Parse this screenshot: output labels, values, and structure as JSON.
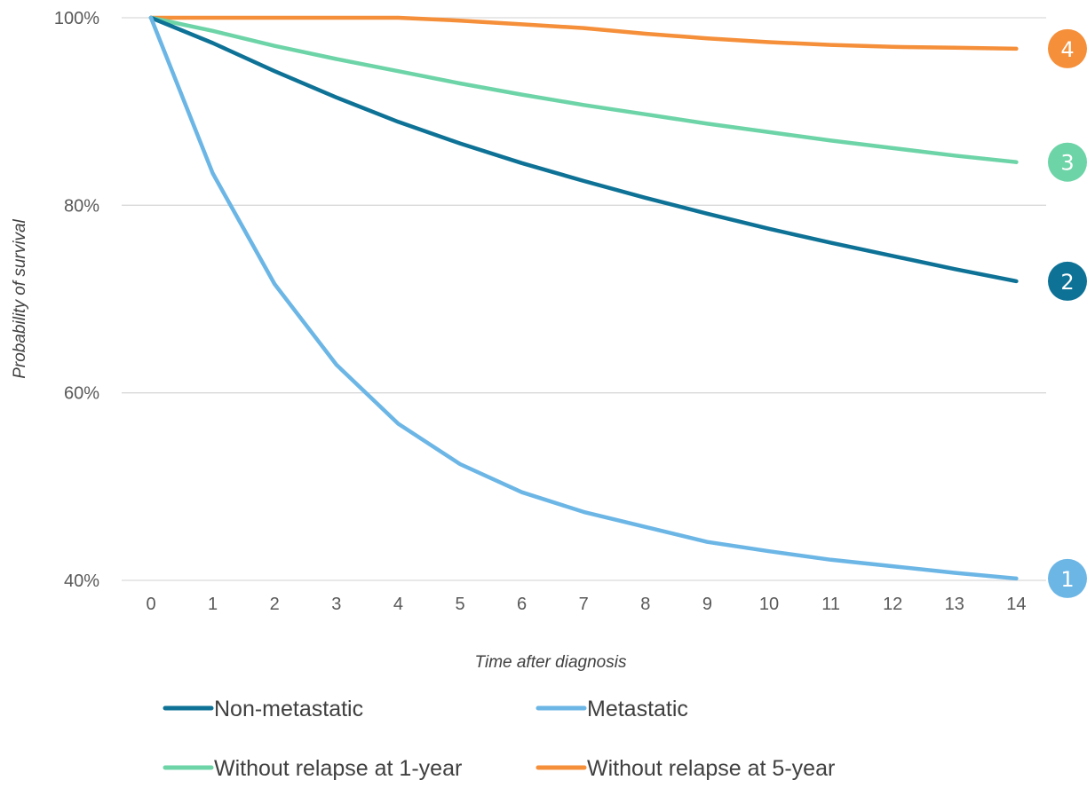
{
  "chart_data": {
    "type": "line",
    "title": "",
    "xlabel": "Time after diagnosis",
    "ylabel": "Probability of survival",
    "x": [
      0,
      1,
      2,
      3,
      4,
      5,
      6,
      7,
      8,
      9,
      10,
      11,
      12,
      13,
      14
    ],
    "x_tick_labels": [
      "0",
      "1",
      "2",
      "3",
      "4",
      "5",
      "6",
      "7",
      "8",
      "9",
      "10",
      "11",
      "12",
      "13",
      "14"
    ],
    "y_ticks": [
      40,
      60,
      80,
      100
    ],
    "y_tick_labels": [
      "40%",
      "60%",
      "80%",
      "100%"
    ],
    "ylim": [
      40,
      100
    ],
    "grid": "horizontal",
    "legend_position": "bottom",
    "series": [
      {
        "name": "Non-metastatic",
        "color": "#0e7296",
        "badge": "2",
        "values": [
          100,
          97.3,
          94.3,
          91.5,
          88.9,
          86.6,
          84.5,
          82.6,
          80.8,
          79.1,
          77.5,
          76.0,
          74.6,
          73.2,
          71.9
        ]
      },
      {
        "name": "Metastatic",
        "color": "#6cb6e6",
        "badge": "1",
        "values": [
          100,
          83.4,
          71.6,
          63.0,
          56.7,
          52.4,
          49.4,
          47.3,
          45.7,
          44.1,
          43.1,
          42.2,
          41.5,
          40.8,
          40.2
        ]
      },
      {
        "name": "Without relapse at 1-year",
        "color": "#6dd4a8",
        "badge": "3",
        "values": [
          100,
          98.6,
          97.0,
          95.6,
          94.3,
          93.0,
          91.8,
          90.7,
          89.7,
          88.7,
          87.8,
          86.9,
          86.1,
          85.3,
          84.6
        ]
      },
      {
        "name": "Without relapse at 5-year",
        "color": "#f58f3a",
        "badge": "4",
        "values": [
          100,
          100,
          100,
          100,
          100,
          99.7,
          99.3,
          98.9,
          98.3,
          97.8,
          97.4,
          97.1,
          96.9,
          96.8,
          96.7
        ]
      }
    ]
  }
}
